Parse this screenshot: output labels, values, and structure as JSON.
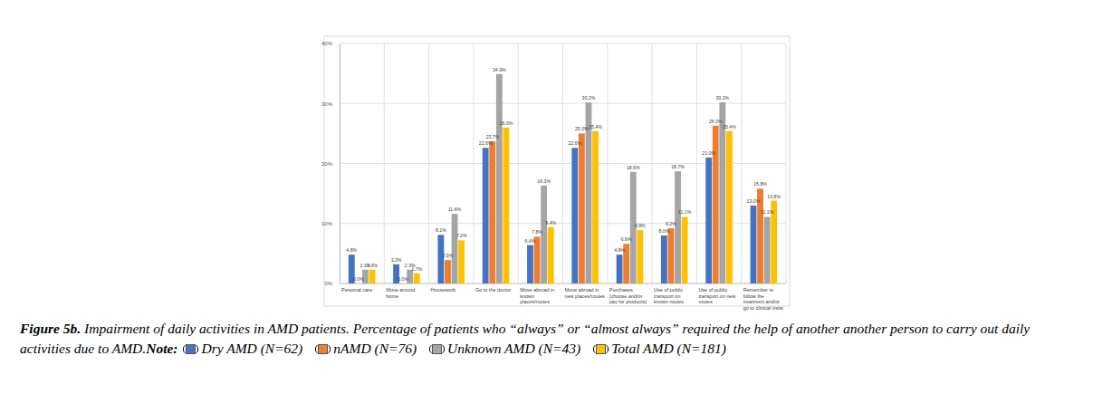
{
  "chart_data": {
    "type": "bar",
    "title": "Figure 5b.",
    "subtitle": "Impairment of daily activities in AMD patients. Percentage of patients who “always” or “almost always” required the help of another another person to carry out daily activities  due to AMD.",
    "annotations": [
      "Note:"
    ],
    "categories": [
      "Personal care",
      "Move around home",
      "Housework",
      "Go to the doctor",
      "Move abroad in known places/routes",
      "Move abroad in new places/routes",
      "Purchases (choose and/or pay for products)",
      "Use of public transport on known routes",
      "Use of public transport on new routes",
      "Remember to follow the treatment and/or go to clinical visits"
    ],
    "series": [
      {
        "name": "Dry AMD (N=62)",
        "color": "#4472c4",
        "values": [
          4.8,
          3.2,
          8.1,
          22.6,
          6.4,
          22.6,
          4.8,
          8.0,
          21.0,
          13.0
        ],
        "value_labels": [
          "4.8%",
          "3.2%",
          "8.1%",
          "22.6%",
          "6.4%",
          "22.6%",
          "4.8%",
          "8.0%",
          "21.0%",
          "13.0%"
        ]
      },
      {
        "name": "nAMD (N=76)",
        "color": "#ed7d31",
        "values": [
          0.0,
          0.0,
          3.9,
          23.7,
          7.8,
          25.0,
          6.6,
          9.2,
          26.3,
          15.8
        ],
        "value_labels": [
          "0.0%",
          "0.0%",
          "3.9%",
          "23.7%",
          "7.8%",
          "25.0%",
          "6.6%",
          "9.2%",
          "26.3%",
          "15.8%"
        ]
      },
      {
        "name": "Unknown AMD (N=43)",
        "color": "#a5a5a5",
        "values": [
          2.3,
          2.3,
          11.6,
          34.9,
          16.3,
          30.2,
          18.6,
          18.7,
          30.2,
          11.1
        ],
        "value_labels": [
          "2.3%",
          "2.3%",
          "11.6%",
          "34.9%",
          "16.3%",
          "30.2%",
          "18.6%",
          "18.7%",
          "30.2%",
          "11.1%"
        ]
      },
      {
        "name": "Total AMD (N=181)",
        "color": "#ffc000",
        "values": [
          2.3,
          1.7,
          7.2,
          26.0,
          9.4,
          25.4,
          8.9,
          11.1,
          25.4,
          13.8
        ],
        "value_labels": [
          "2.3%",
          "1.7%",
          "7.2%",
          "26.0%",
          "9.4%",
          "25.4%",
          "8.9%",
          "11.1%",
          "25.4%",
          "13.8%"
        ]
      }
    ],
    "ylim": [
      0,
      40
    ],
    "yticks": [
      {
        "value": 0,
        "label": "0%"
      },
      {
        "value": 10,
        "label": "10%"
      },
      {
        "value": 20,
        "label": "20%"
      },
      {
        "value": 30,
        "label": "30%"
      },
      {
        "value": 40,
        "label": "40%"
      }
    ],
    "grid": true,
    "legend": "bottom",
    "data_labels": true
  }
}
